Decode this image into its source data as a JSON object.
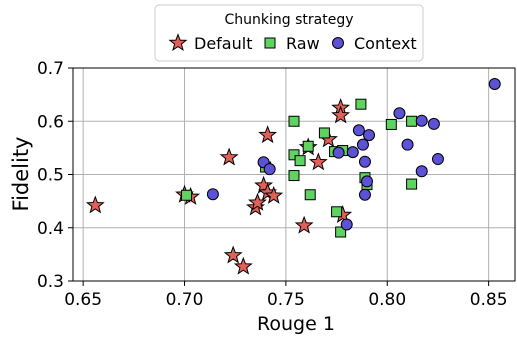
{
  "chart_data": {
    "type": "scatter",
    "xlabel": "Rouge 1",
    "ylabel": "Fidelity",
    "xlim": [
      0.645,
      0.863
    ],
    "ylim": [
      0.3,
      0.7
    ],
    "xticks": [
      "0.65",
      "0.70",
      "0.75",
      "0.80",
      "0.85"
    ],
    "yticks": [
      "0.3",
      "0.4",
      "0.5",
      "0.6",
      "0.7"
    ],
    "grid": true,
    "legend": {
      "title": "Chunking strategy",
      "placement": "top-center, outside plot"
    },
    "series": [
      {
        "name": "Default",
        "marker": "star",
        "color": "#e0615a",
        "points": [
          [
            0.656,
            0.442
          ],
          [
            0.7,
            0.462
          ],
          [
            0.703,
            0.458
          ],
          [
            0.722,
            0.532
          ],
          [
            0.724,
            0.348
          ],
          [
            0.729,
            0.327
          ],
          [
            0.735,
            0.438
          ],
          [
            0.736,
            0.447
          ],
          [
            0.739,
            0.479
          ],
          [
            0.741,
            0.574
          ],
          [
            0.741,
            0.466
          ],
          [
            0.744,
            0.46
          ],
          [
            0.759,
            0.404
          ],
          [
            0.761,
            0.551
          ],
          [
            0.766,
            0.523
          ],
          [
            0.771,
            0.566
          ],
          [
            0.777,
            0.625
          ],
          [
            0.777,
            0.611
          ],
          [
            0.778,
            0.424
          ]
        ]
      },
      {
        "name": "Raw",
        "marker": "square",
        "color": "#5fd35f",
        "points": [
          [
            0.701,
            0.461
          ],
          [
            0.74,
            0.514
          ],
          [
            0.754,
            0.6
          ],
          [
            0.754,
            0.537
          ],
          [
            0.754,
            0.498
          ],
          [
            0.757,
            0.526
          ],
          [
            0.761,
            0.553
          ],
          [
            0.762,
            0.462
          ],
          [
            0.769,
            0.578
          ],
          [
            0.774,
            0.543
          ],
          [
            0.775,
            0.43
          ],
          [
            0.777,
            0.392
          ],
          [
            0.778,
            0.545
          ],
          [
            0.787,
            0.632
          ],
          [
            0.789,
            0.494
          ],
          [
            0.79,
            0.481
          ],
          [
            0.802,
            0.594
          ],
          [
            0.812,
            0.6
          ],
          [
            0.812,
            0.482
          ]
        ]
      },
      {
        "name": "Context",
        "marker": "circle",
        "color": "#5b52d6",
        "points": [
          [
            0.714,
            0.463
          ],
          [
            0.739,
            0.523
          ],
          [
            0.742,
            0.51
          ],
          [
            0.776,
            0.541
          ],
          [
            0.78,
            0.406
          ],
          [
            0.783,
            0.542
          ],
          [
            0.786,
            0.583
          ],
          [
            0.788,
            0.556
          ],
          [
            0.789,
            0.524
          ],
          [
            0.789,
            0.462
          ],
          [
            0.79,
            0.487
          ],
          [
            0.791,
            0.574
          ],
          [
            0.806,
            0.615
          ],
          [
            0.81,
            0.556
          ],
          [
            0.817,
            0.601
          ],
          [
            0.817,
            0.506
          ],
          [
            0.823,
            0.595
          ],
          [
            0.825,
            0.529
          ],
          [
            0.853,
            0.67
          ]
        ]
      }
    ]
  }
}
